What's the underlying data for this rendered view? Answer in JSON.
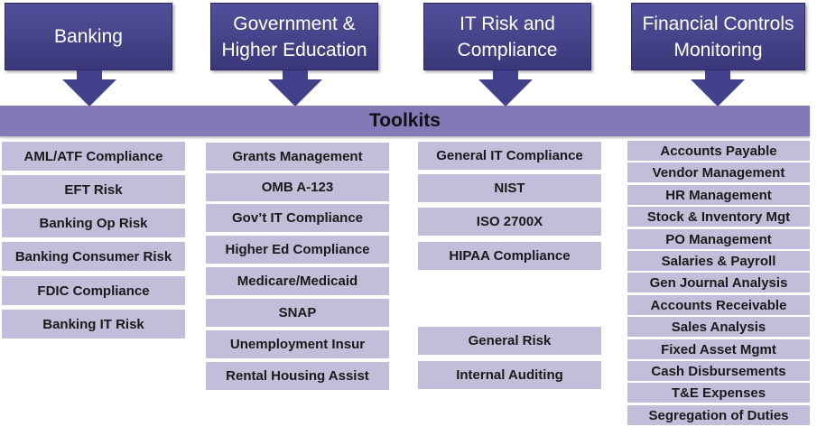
{
  "categories": [
    {
      "label": "Banking"
    },
    {
      "label": "Government &\nHigher Education"
    },
    {
      "label": "IT Risk and\nCompliance"
    },
    {
      "label": "Financial Controls\nMonitoring"
    }
  ],
  "toolkits_label": "Toolkits",
  "columns": {
    "banking": [
      "AML/ATF Compliance",
      "EFT Risk",
      "Banking Op Risk",
      "Banking Consumer Risk",
      "FDIC Compliance",
      "Banking IT Risk"
    ],
    "government": [
      "Grants Management",
      "OMB A-123",
      "Gov’t IT Compliance",
      "Higher Ed Compliance",
      "Medicare/Medicaid",
      "SNAP",
      "Unemployment  Insur",
      "Rental Housing Assist"
    ],
    "it_risk_top": [
      "General IT Compliance",
      "NIST",
      "ISO 2700X",
      "HIPAA Compliance"
    ],
    "it_risk_bottom": [
      "General Risk",
      "Internal Auditing"
    ],
    "financial": [
      "Accounts Payable",
      "Vendor Management",
      "HR Management",
      "Stock & Inventory Mgt",
      "PO Management",
      "Salaries & Payroll",
      "Gen Journal Analysis",
      "Accounts Receivable",
      "Sales Analysis",
      "Fixed Asset Mgmt",
      "Cash Disbursements",
      "T&E Expenses",
      "Segregation of Duties"
    ]
  },
  "colors": {
    "category_fill": "#42408a",
    "toolkits_bar": "#8479b6",
    "item_fill": "#c3bdda"
  }
}
